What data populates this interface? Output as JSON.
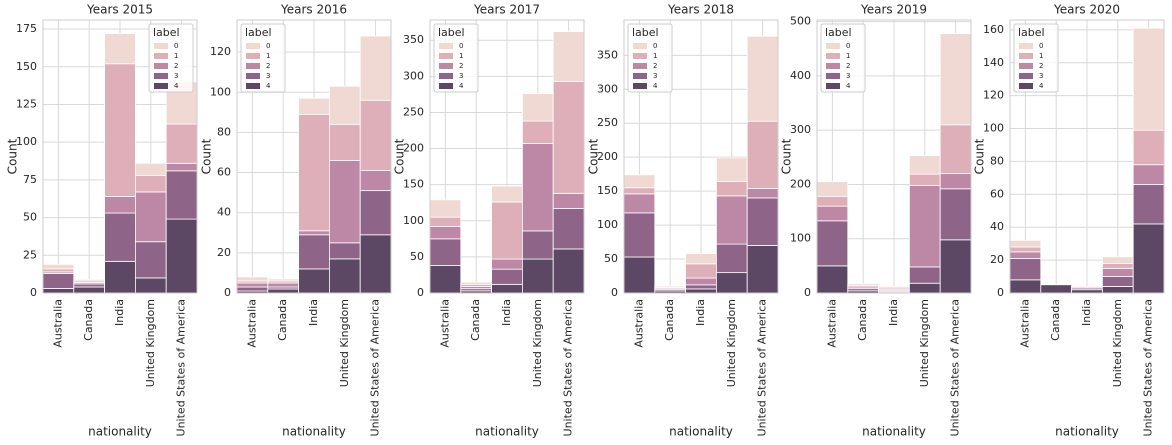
{
  "chart_data": [
    {
      "type": "bar",
      "stacked": true,
      "title": "Years 2015",
      "xlabel": "nationality",
      "ylabel": "Count",
      "categories": [
        "Australia",
        "Canada",
        "India",
        "United Kingdom",
        "United States of America"
      ],
      "series": [
        {
          "name": "0",
          "color": "#f0d8d3",
          "values": [
            3,
            1,
            20,
            8,
            28
          ]
        },
        {
          "name": "1",
          "color": "#dfafb9",
          "values": [
            2,
            1,
            88,
            11,
            26
          ]
        },
        {
          "name": "2",
          "color": "#bd88a6",
          "values": [
            1,
            1,
            11,
            33,
            5
          ]
        },
        {
          "name": "3",
          "color": "#8f6489",
          "values": [
            10,
            2,
            32,
            24,
            32
          ]
        },
        {
          "name": "4",
          "color": "#5c4864",
          "values": [
            3,
            4,
            21,
            10,
            49
          ]
        }
      ],
      "ylim": [
        0,
        181
      ],
      "yticks": [
        0,
        25,
        50,
        75,
        100,
        125,
        150,
        175
      ],
      "grid": true,
      "legend_title": "label",
      "legend_loc": "upper right"
    },
    {
      "type": "bar",
      "stacked": true,
      "title": "Years 2016",
      "xlabel": "nationality",
      "ylabel": "Count",
      "categories": [
        "Australia",
        "Canada",
        "India",
        "United Kingdom",
        "United States of America"
      ],
      "series": [
        {
          "name": "0",
          "color": "#f0d8d3",
          "values": [
            2,
            1,
            8,
            19,
            32
          ]
        },
        {
          "name": "1",
          "color": "#dfafb9",
          "values": [
            1,
            1,
            58,
            18,
            35
          ]
        },
        {
          "name": "2",
          "color": "#bd88a6",
          "values": [
            2,
            2,
            2,
            41,
            10
          ]
        },
        {
          "name": "3",
          "color": "#8f6489",
          "values": [
            2,
            1,
            17,
            8,
            22
          ]
        },
        {
          "name": "4",
          "color": "#5c4864",
          "values": [
            1,
            2,
            12,
            17,
            29
          ]
        }
      ],
      "ylim": [
        0,
        136
      ],
      "yticks": [
        0,
        20,
        40,
        60,
        80,
        100,
        120
      ],
      "grid": true,
      "legend_title": "label",
      "legend_loc": "upper left"
    },
    {
      "type": "bar",
      "stacked": true,
      "title": "Years 2017",
      "xlabel": "nationality",
      "ylabel": "Count",
      "categories": [
        "Australia",
        "Canada",
        "India",
        "United Kingdom",
        "United States of America"
      ],
      "series": [
        {
          "name": "0",
          "color": "#f0d8d3",
          "values": [
            24,
            3,
            22,
            38,
            69
          ]
        },
        {
          "name": "1",
          "color": "#dfafb9",
          "values": [
            13,
            3,
            79,
            31,
            155
          ]
        },
        {
          "name": "2",
          "color": "#bd88a6",
          "values": [
            17,
            3,
            14,
            121,
            21
          ]
        },
        {
          "name": "3",
          "color": "#8f6489",
          "values": [
            37,
            3,
            21,
            39,
            56
          ]
        },
        {
          "name": "4",
          "color": "#5c4864",
          "values": [
            38,
            3,
            12,
            47,
            61
          ]
        }
      ],
      "ylim": [
        0,
        378
      ],
      "yticks": [
        0,
        50,
        100,
        150,
        200,
        250,
        300,
        350
      ],
      "grid": true,
      "legend_title": "label",
      "legend_loc": "upper left"
    },
    {
      "type": "bar",
      "stacked": true,
      "title": "Years 2018",
      "xlabel": "nationality",
      "ylabel": "Count",
      "categories": [
        "Australia",
        "Canada",
        "India",
        "United Kingdom",
        "United States of America"
      ],
      "series": [
        {
          "name": "0",
          "color": "#f0d8d3",
          "values": [
            19,
            2,
            15,
            35,
            125
          ]
        },
        {
          "name": "1",
          "color": "#dfafb9",
          "values": [
            9,
            1,
            21,
            21,
            99
          ]
        },
        {
          "name": "2",
          "color": "#bd88a6",
          "values": [
            28,
            2,
            10,
            71,
            14
          ]
        },
        {
          "name": "3",
          "color": "#8f6489",
          "values": [
            65,
            2,
            6,
            42,
            70
          ]
        },
        {
          "name": "4",
          "color": "#5c4864",
          "values": [
            53,
            3,
            6,
            30,
            70
          ]
        }
      ],
      "ylim": [
        0,
        402
      ],
      "yticks": [
        0,
        50,
        100,
        150,
        200,
        250,
        300,
        350
      ],
      "grid": true,
      "legend_title": "label",
      "legend_loc": "upper left"
    },
    {
      "type": "bar",
      "stacked": true,
      "title": "Years 2019",
      "xlabel": "nationality",
      "ylabel": "Count",
      "categories": [
        "Australia",
        "Canada",
        "India",
        "United Kingdom",
        "United States of America"
      ],
      "series": [
        {
          "name": "0",
          "color": "#f0d8d3",
          "values": [
            27,
            3,
            3,
            34,
            168
          ]
        },
        {
          "name": "1",
          "color": "#dfafb9",
          "values": [
            18,
            3,
            3,
            21,
            90
          ]
        },
        {
          "name": "2",
          "color": "#bd88a6",
          "values": [
            27,
            3,
            2,
            150,
            28
          ]
        },
        {
          "name": "3",
          "color": "#8f6489",
          "values": [
            83,
            4,
            2,
            30,
            94
          ]
        },
        {
          "name": "4",
          "color": "#5c4864",
          "values": [
            50,
            4,
            2,
            18,
            98
          ]
        }
      ],
      "ylim": [
        0,
        503
      ],
      "yticks": [
        0,
        100,
        200,
        300,
        400,
        500
      ],
      "grid": true,
      "legend_title": "label",
      "legend_loc": "upper left"
    },
    {
      "type": "bar",
      "stacked": true,
      "title": "Years 2020",
      "xlabel": "nationality",
      "ylabel": "Count",
      "categories": [
        "Australia",
        "Canada",
        "India",
        "United Kingdom",
        "United States of America"
      ],
      "series": [
        {
          "name": "0",
          "color": "#f0d8d3",
          "values": [
            4,
            0,
            1,
            4,
            62
          ]
        },
        {
          "name": "1",
          "color": "#dfafb9",
          "values": [
            3,
            0,
            0,
            3,
            21
          ]
        },
        {
          "name": "2",
          "color": "#bd88a6",
          "values": [
            4,
            0,
            0,
            5,
            12
          ]
        },
        {
          "name": "3",
          "color": "#8f6489",
          "values": [
            13,
            0,
            1,
            6,
            24
          ]
        },
        {
          "name": "4",
          "color": "#5c4864",
          "values": [
            8,
            5,
            2,
            4,
            42
          ]
        }
      ],
      "ylim": [
        0,
        166
      ],
      "yticks": [
        0,
        20,
        40,
        60,
        80,
        100,
        120,
        140,
        160
      ],
      "grid": true,
      "legend_title": "label",
      "legend_loc": "upper left"
    }
  ]
}
